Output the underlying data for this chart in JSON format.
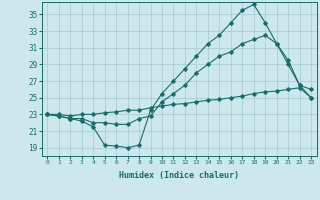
{
  "xlabel": "Humidex (Indice chaleur)",
  "background_color": "#cce8ec",
  "grid_color": "#aacdd4",
  "line_color": "#1a6b6b",
  "xlim": [
    -0.5,
    23.5
  ],
  "ylim": [
    18.0,
    36.5
  ],
  "yticks": [
    19,
    21,
    23,
    25,
    27,
    29,
    31,
    33,
    35
  ],
  "xticks": [
    0,
    1,
    2,
    3,
    4,
    5,
    6,
    7,
    8,
    9,
    10,
    11,
    12,
    13,
    14,
    15,
    16,
    17,
    18,
    19,
    20,
    21,
    22,
    23
  ],
  "line1_x": [
    0,
    1,
    2,
    3,
    4,
    5,
    6,
    7,
    8,
    9,
    10,
    11,
    12,
    13,
    14,
    15,
    16,
    17,
    18,
    19,
    20,
    21,
    22,
    23
  ],
  "line1_y": [
    23.0,
    22.8,
    22.5,
    22.2,
    21.5,
    19.3,
    19.2,
    19.0,
    19.3,
    23.5,
    25.5,
    27.0,
    28.5,
    30.0,
    31.5,
    32.5,
    34.0,
    35.5,
    36.2,
    34.0,
    31.5,
    29.5,
    26.5,
    26.0
  ],
  "line2_x": [
    0,
    1,
    2,
    3,
    4,
    5,
    6,
    7,
    8,
    9,
    10,
    11,
    12,
    13,
    14,
    15,
    16,
    17,
    18,
    19,
    20,
    21,
    22,
    23
  ],
  "line2_y": [
    23.0,
    22.8,
    22.5,
    22.5,
    22.0,
    22.0,
    21.8,
    21.8,
    22.5,
    22.8,
    24.5,
    25.5,
    26.5,
    28.0,
    29.0,
    30.0,
    30.5,
    31.5,
    32.0,
    32.5,
    31.5,
    29.0,
    26.5,
    25.0
  ],
  "line3_x": [
    0,
    1,
    2,
    3,
    4,
    5,
    6,
    7,
    8,
    9,
    10,
    11,
    12,
    13,
    14,
    15,
    16,
    17,
    18,
    19,
    20,
    21,
    22,
    23
  ],
  "line3_y": [
    23.0,
    23.0,
    22.8,
    23.0,
    23.0,
    23.2,
    23.3,
    23.5,
    23.5,
    23.8,
    24.0,
    24.2,
    24.3,
    24.5,
    24.7,
    24.8,
    25.0,
    25.2,
    25.5,
    25.7,
    25.8,
    26.0,
    26.2,
    25.0
  ]
}
